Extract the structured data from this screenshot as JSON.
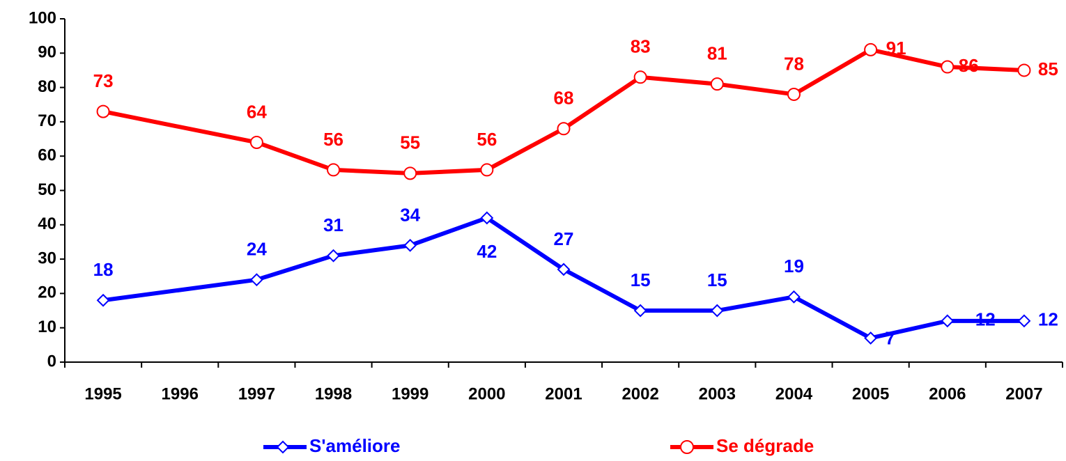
{
  "chart_data": {
    "type": "line",
    "categories": [
      "1995",
      "1996",
      "1997",
      "1998",
      "1999",
      "2000",
      "2001",
      "2002",
      "2003",
      "2004",
      "2005",
      "2006",
      "2007"
    ],
    "series": [
      {
        "name": "S'améliore",
        "color": "#0000ff",
        "marker": "diamond",
        "values": [
          18,
          null,
          24,
          31,
          34,
          42,
          27,
          15,
          15,
          19,
          7,
          12,
          12
        ]
      },
      {
        "name": "Se dégrade",
        "color": "#ff0000",
        "marker": "circle",
        "values": [
          73,
          null,
          64,
          56,
          55,
          56,
          68,
          83,
          81,
          78,
          91,
          86,
          85
        ]
      }
    ],
    "ylim": [
      0,
      100
    ],
    "yticks": [
      0,
      10,
      20,
      30,
      40,
      50,
      60,
      70,
      80,
      90,
      100
    ],
    "grid": false,
    "legend": "bottom"
  }
}
